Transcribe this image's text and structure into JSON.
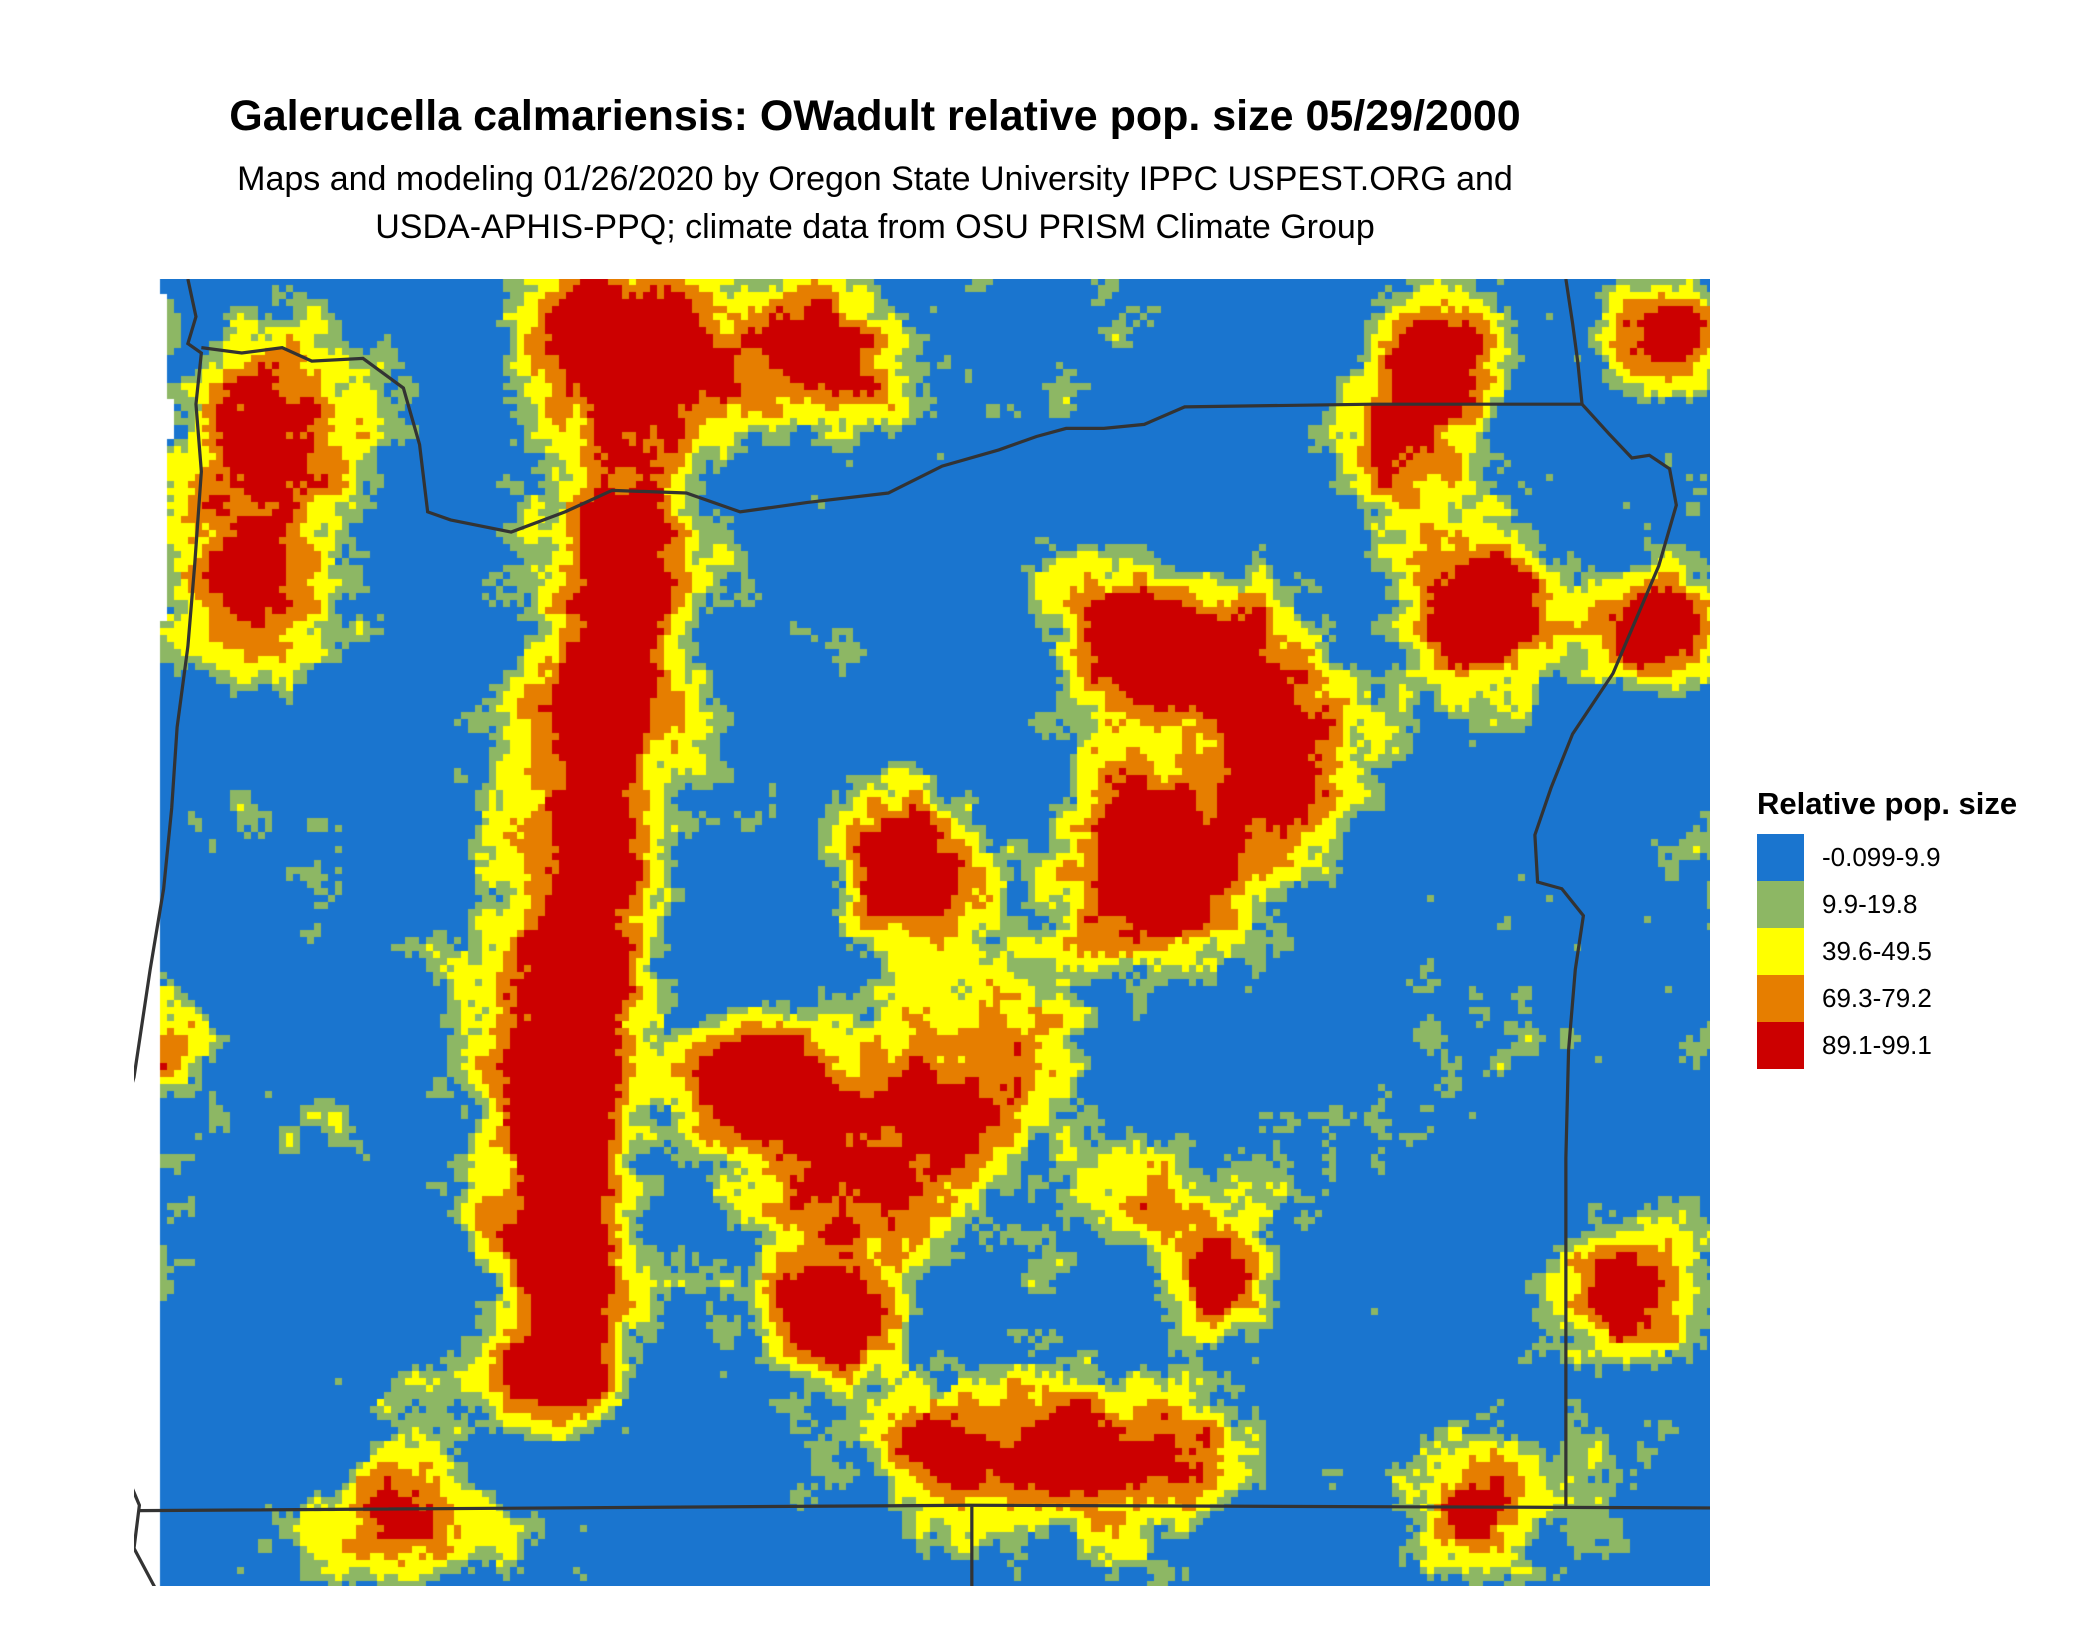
{
  "title": "Galerucella calmariensis: OWadult relative pop. size 05/29/2000",
  "subtitle_lines": [
    "Maps and modeling 01/26/2020 by Oregon State University IPPC USPEST.ORG and",
    "USDA-APHIS-PPQ; climate data from OSU PRISM Climate Group"
  ],
  "legend": {
    "title": "Relative pop. size",
    "items": [
      {
        "label": "-0.099-9.9",
        "color": "#1A75CF"
      },
      {
        "label": "9.9-19.8",
        "color": "#8DB764"
      },
      {
        "label": "39.6-49.5",
        "color": "#FFFF00"
      },
      {
        "label": "69.3-79.2",
        "color": "#E67E00"
      },
      {
        "label": "89.1-99.1",
        "color": "#CC0000"
      }
    ]
  },
  "border_color": "#333333"
}
